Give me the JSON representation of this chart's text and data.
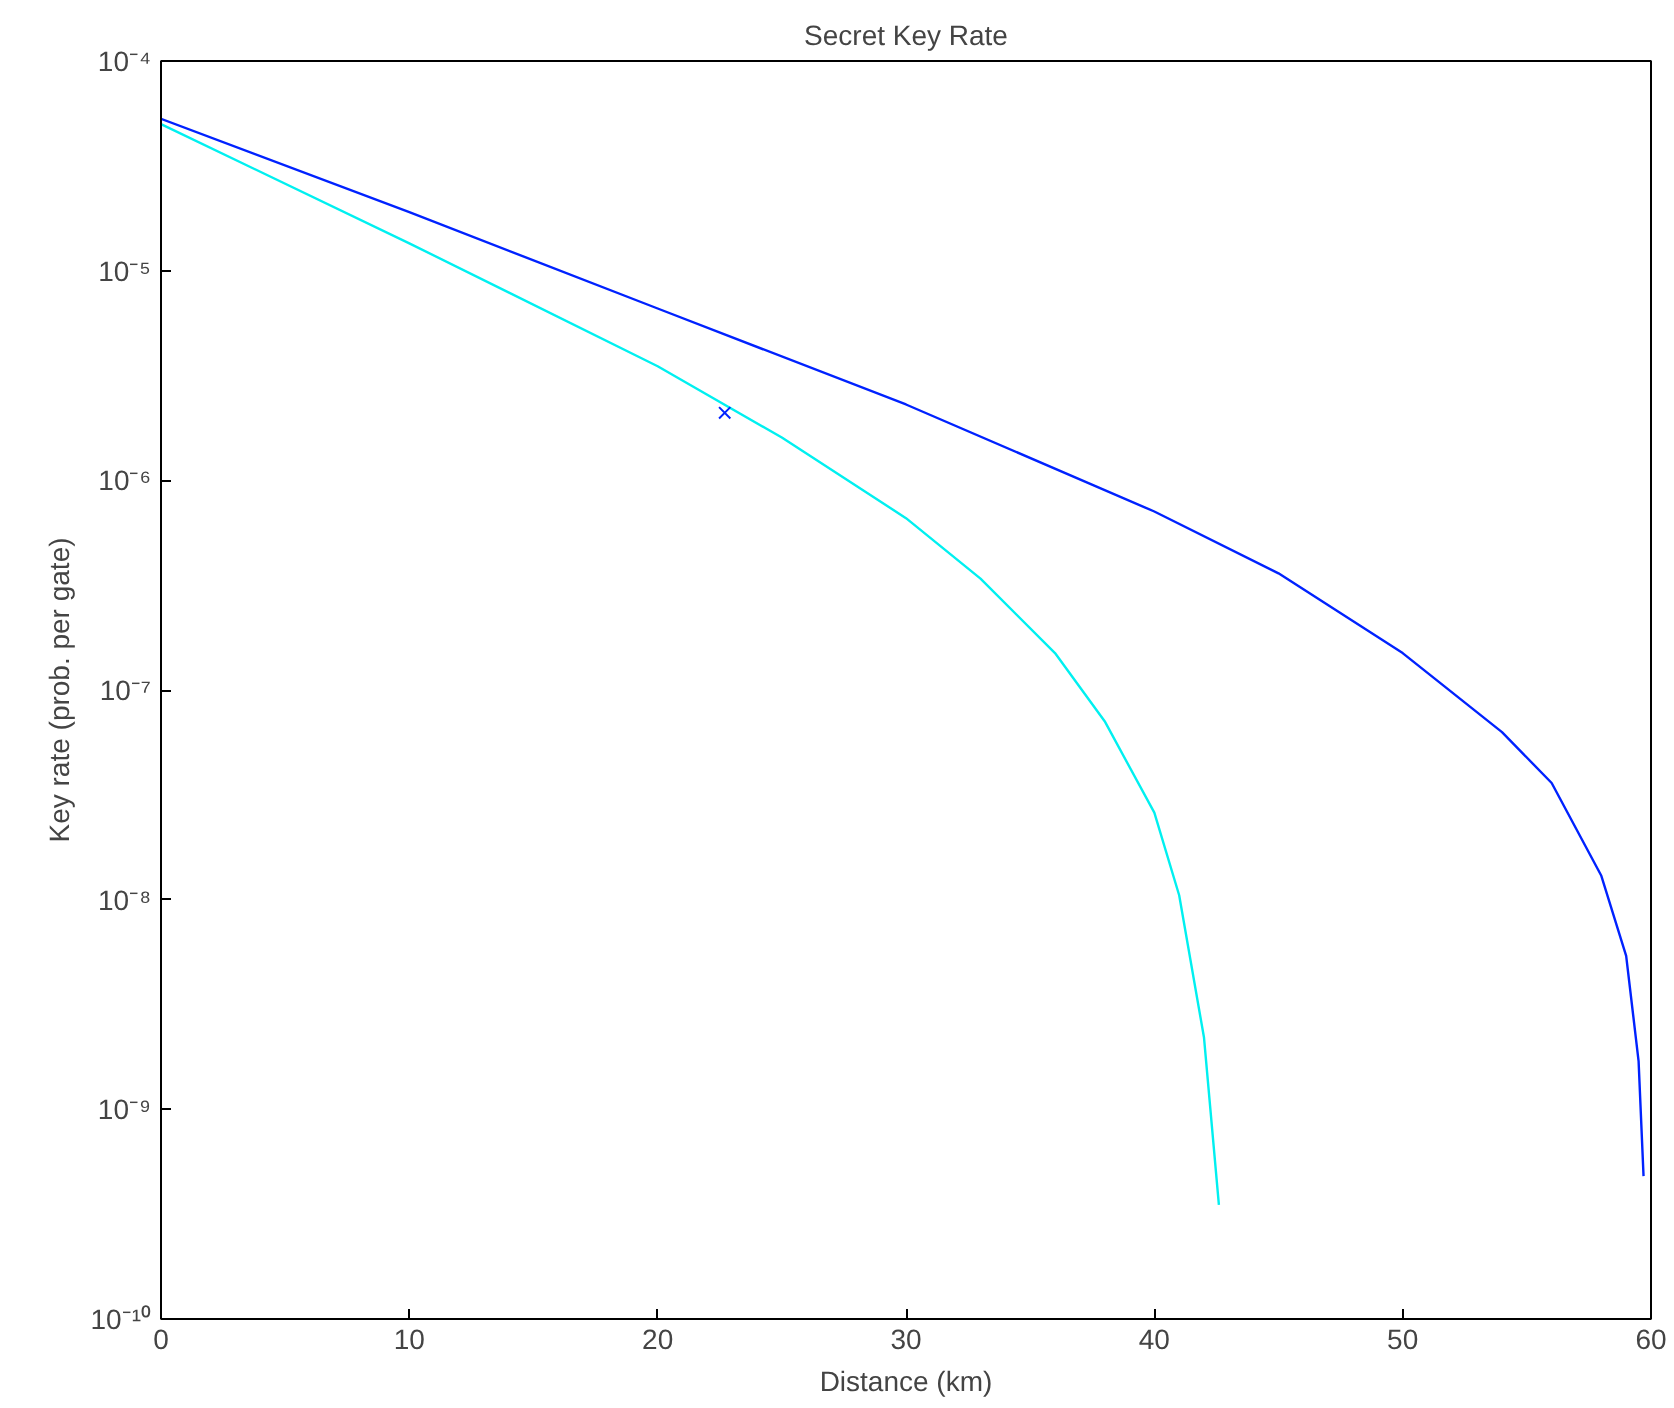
{
  "chart_data": {
    "type": "line",
    "title": "Secret Key Rate",
    "xlabel": "Distance (km)",
    "ylabel": "Key rate (prob. per gate)",
    "log": "y",
    "grid": false,
    "line_style": "solid",
    "marker": "none",
    "xlim": [
      0,
      60
    ],
    "xticks": [
      0,
      10,
      20,
      30,
      40,
      50,
      60
    ],
    "ylim": [
      1e-10,
      0.0001
    ],
    "yticks": [
      {
        "value": 1e-10,
        "label": "10⁻¹⁰"
      },
      {
        "value": 1e-09,
        "label": "10⁻⁹"
      },
      {
        "value": 1e-08,
        "label": "10⁻⁸"
      },
      {
        "value": 1e-07,
        "label": "10⁻⁷"
      },
      {
        "value": 1e-06,
        "label": "10⁻⁶"
      },
      {
        "value": 1e-05,
        "label": "10⁻⁵"
      },
      {
        "value": 0.0001,
        "label": "10⁻⁴"
      }
    ],
    "series": [
      {
        "color": "#0022ff",
        "x": [
          0,
          10,
          20,
          30,
          40,
          45,
          50,
          54,
          56,
          58,
          59,
          59.5,
          59.7
        ],
        "values": [
          5.3e-05,
          1.9e-05,
          6.6e-06,
          2.3e-06,
          7.1e-07,
          3.6e-07,
          1.5e-07,
          6.3e-08,
          3.6e-08,
          1.3e-08,
          5.4e-09,
          1.7e-09,
          4.8e-10
        ]
      },
      {
        "color": "#00f0f0",
        "x": [
          0,
          10,
          20,
          25,
          30,
          33,
          36,
          38,
          40,
          41,
          42,
          42.6
        ],
        "values": [
          5e-05,
          1.35e-05,
          3.5e-06,
          1.6e-06,
          6.6e-07,
          3.4e-07,
          1.5e-07,
          7.1e-08,
          2.6e-08,
          1.05e-08,
          2.2e-09,
          3.5e-10
        ]
      },
      {
        "type": "scatter",
        "marker": "cross",
        "color": "#0022ff",
        "x": [
          22.7
        ],
        "values": [
          2.1e-06
        ]
      }
    ]
  }
}
